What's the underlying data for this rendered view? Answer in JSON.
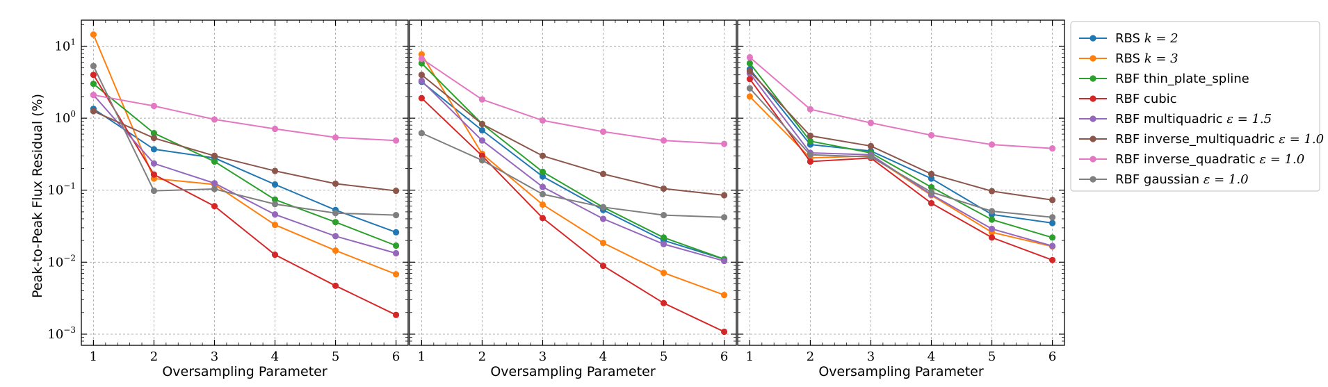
{
  "chart_data": {
    "type": "line",
    "yscale": "log",
    "ylim": [
      0.0007,
      23
    ],
    "xlim": [
      0.8,
      6.2
    ],
    "ylabel": "Peak-to-Peak Flux Residual (%)",
    "grid": true,
    "legend_position": "outside-right",
    "series_colors": [
      "#1f77b4",
      "#ff7f0e",
      "#2ca02c",
      "#d62728",
      "#9467bd",
      "#8c564b",
      "#e377c2",
      "#7f7f7f"
    ],
    "legend": [
      {
        "text": "RBS",
        "math": "k = 2"
      },
      {
        "text": "RBS",
        "math": "k = 3"
      },
      {
        "text": "RBF thin_plate_spline",
        "math": ""
      },
      {
        "text": "RBF cubic",
        "math": ""
      },
      {
        "text": "RBF multiquadric",
        "math": "ε = 1.5"
      },
      {
        "text": "RBF inverse_multiquadric",
        "math": "ε = 1.0"
      },
      {
        "text": "RBF inverse_quadratic",
        "math": "ε = 1.0"
      },
      {
        "text": "RBF gaussian",
        "math": "ε = 1.0"
      }
    ],
    "y_tick_labels": [
      {
        "base": "10",
        "exp": "1",
        "value": 10
      },
      {
        "base": "10",
        "exp": "0",
        "value": 1
      },
      {
        "base": "10",
        "exp": "−1",
        "value": 0.1
      },
      {
        "base": "10",
        "exp": "−2",
        "value": 0.01
      },
      {
        "base": "10",
        "exp": "−3",
        "value": 0.001
      }
    ],
    "panels": [
      {
        "xlabel": "Oversampling Parameter",
        "x": [
          1,
          2,
          3,
          4,
          5,
          6
        ],
        "x_tick_labels": [
          "1",
          "2",
          "3",
          "4",
          "5",
          "6"
        ],
        "series": [
          {
            "name": "RBS k = 2",
            "values": [
              1.35,
              0.37,
              0.28,
              0.12,
              0.053,
              0.026
            ]
          },
          {
            "name": "RBS k = 3",
            "values": [
              14.5,
              0.145,
              0.12,
              0.033,
              0.0145,
              0.0068
            ]
          },
          {
            "name": "RBF thin_plate_spline",
            "values": [
              3.0,
              0.62,
              0.25,
              0.074,
              0.036,
              0.017
            ]
          },
          {
            "name": "RBF cubic",
            "values": [
              4.0,
              0.165,
              0.06,
              0.0127,
              0.0047,
              0.00185
            ]
          },
          {
            "name": "RBF multiquadric",
            "values": [
              2.1,
              0.235,
              0.125,
              0.046,
              0.023,
              0.0133
            ]
          },
          {
            "name": "RBF inverse_multiquadric",
            "values": [
              1.25,
              0.53,
              0.3,
              0.185,
              0.123,
              0.098
            ]
          },
          {
            "name": "RBF inverse_quadratic",
            "values": [
              2.1,
              1.48,
              0.96,
              0.71,
              0.54,
              0.49
            ]
          },
          {
            "name": "RBF gaussian",
            "values": [
              5.3,
              0.098,
              0.104,
              0.064,
              0.048,
              0.045
            ]
          }
        ]
      },
      {
        "xlabel": "Oversampling Parameter",
        "x": [
          1,
          2,
          3,
          4,
          5,
          6
        ],
        "x_tick_labels": [
          "1",
          "2",
          "3",
          "4",
          "5",
          "6"
        ],
        "series": [
          {
            "name": "RBS k = 2",
            "values": [
              3.2,
              0.68,
              0.155,
              0.053,
              0.02,
              0.011
            ]
          },
          {
            "name": "RBS k = 3",
            "values": [
              7.7,
              0.32,
              0.063,
              0.0185,
              0.0071,
              0.0035
            ]
          },
          {
            "name": "RBF thin_plate_spline",
            "values": [
              5.8,
              0.83,
              0.18,
              0.058,
              0.022,
              0.011
            ]
          },
          {
            "name": "RBF cubic",
            "values": [
              1.9,
              0.3,
              0.041,
              0.0089,
              0.0027,
              0.00108
            ]
          },
          {
            "name": "RBF multiquadric",
            "values": [
              3.3,
              0.49,
              0.111,
              0.04,
              0.0178,
              0.0104
            ]
          },
          {
            "name": "RBF inverse_multiquadric",
            "values": [
              4.0,
              0.83,
              0.3,
              0.168,
              0.105,
              0.085
            ]
          },
          {
            "name": "RBF inverse_quadratic",
            "values": [
              6.7,
              1.82,
              0.93,
              0.65,
              0.49,
              0.44
            ]
          },
          {
            "name": "RBF gaussian",
            "values": [
              0.62,
              0.26,
              0.088,
              0.058,
              0.045,
              0.042
            ]
          }
        ]
      },
      {
        "xlabel": "Oversampling Parameter",
        "x": [
          1,
          2,
          3,
          4,
          5,
          6
        ],
        "x_tick_labels": [
          "1",
          "2",
          "3",
          "4",
          "5",
          "6"
        ],
        "series": [
          {
            "name": "RBS k = 2",
            "values": [
              4.8,
              0.43,
              0.35,
              0.145,
              0.046,
              0.035
            ]
          },
          {
            "name": "RBS k = 3",
            "values": [
              2.0,
              0.28,
              0.3,
              0.085,
              0.026,
              0.0165
            ]
          },
          {
            "name": "RBF thin_plate_spline",
            "values": [
              5.8,
              0.48,
              0.33,
              0.11,
              0.039,
              0.022
            ]
          },
          {
            "name": "RBF cubic",
            "values": [
              3.5,
              0.25,
              0.28,
              0.066,
              0.022,
              0.0107
            ]
          },
          {
            "name": "RBF multiquadric",
            "values": [
              4.2,
              0.33,
              0.31,
              0.087,
              0.029,
              0.0168
            ]
          },
          {
            "name": "RBF inverse_multiquadric",
            "values": [
              4.5,
              0.57,
              0.41,
              0.168,
              0.097,
              0.073
            ]
          },
          {
            "name": "RBF inverse_quadratic",
            "values": [
              7.0,
              1.33,
              0.86,
              0.58,
              0.43,
              0.38
            ]
          },
          {
            "name": "RBF gaussian",
            "values": [
              2.6,
              0.31,
              0.29,
              0.094,
              0.051,
              0.042
            ]
          }
        ]
      }
    ]
  }
}
